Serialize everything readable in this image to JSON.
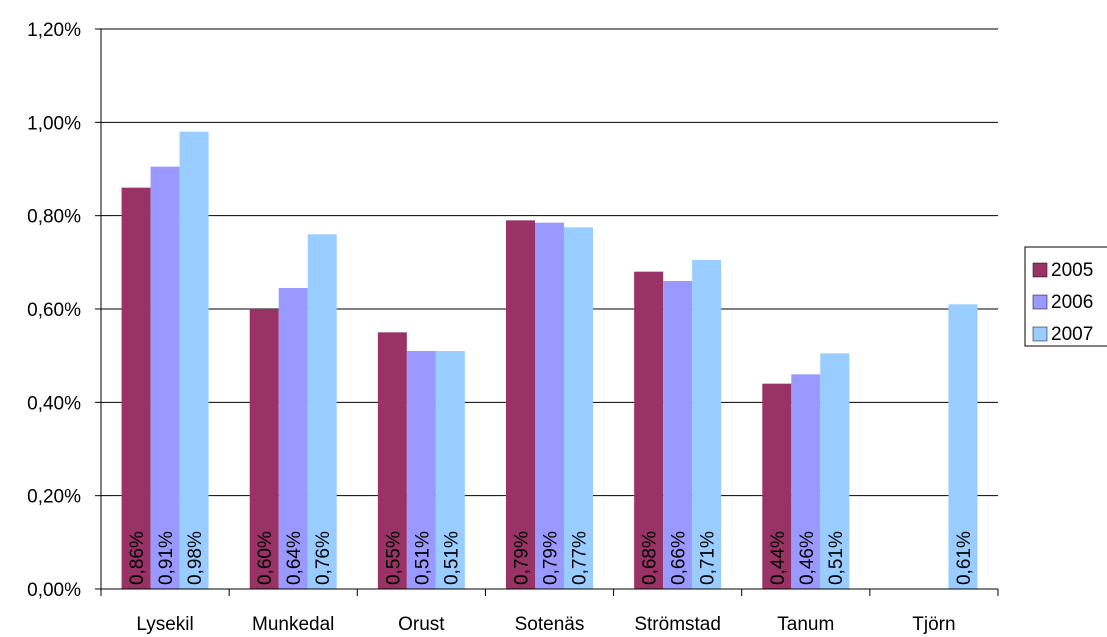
{
  "chart_data": {
    "type": "bar",
    "categories": [
      "Lysekil",
      "Munkedal",
      "Orust",
      "Sotenäs",
      "Strömstad",
      "Tanum",
      "Tjörn"
    ],
    "series": [
      {
        "name": "2005",
        "color": "#993366",
        "values": [
          0.86,
          0.6,
          0.55,
          0.79,
          0.68,
          0.44,
          null
        ],
        "labels": [
          "0,86%",
          "0,60%",
          "0,55%",
          "0,79%",
          "0,68%",
          "0,44%",
          null
        ]
      },
      {
        "name": "2006",
        "color": "#9999FF",
        "values": [
          0.905,
          0.645,
          0.51,
          0.785,
          0.66,
          0.46,
          null
        ],
        "labels": [
          "0,91%",
          "0,64%",
          "0,51%",
          "0,79%",
          "0,66%",
          "0,46%",
          null
        ]
      },
      {
        "name": "2007",
        "color": "#99CCFF",
        "values": [
          0.98,
          0.76,
          0.51,
          0.775,
          0.705,
          0.505,
          0.61
        ],
        "labels": [
          "0,98%",
          "0,76%",
          "0,51%",
          "0,77%",
          "0,71%",
          "0,51%",
          "0,61%"
        ]
      }
    ],
    "ylim": [
      0,
      1.2
    ],
    "yticks": [
      0,
      0.2,
      0.4,
      0.6,
      0.8,
      1.0,
      1.2
    ],
    "ytick_labels": [
      "0,00%",
      "0,20%",
      "0,40%",
      "0,60%",
      "0,80%",
      "1,00%",
      "1,20%"
    ],
    "grid": true,
    "legend_position": "right",
    "title": "",
    "xlabel": "",
    "ylabel": ""
  }
}
